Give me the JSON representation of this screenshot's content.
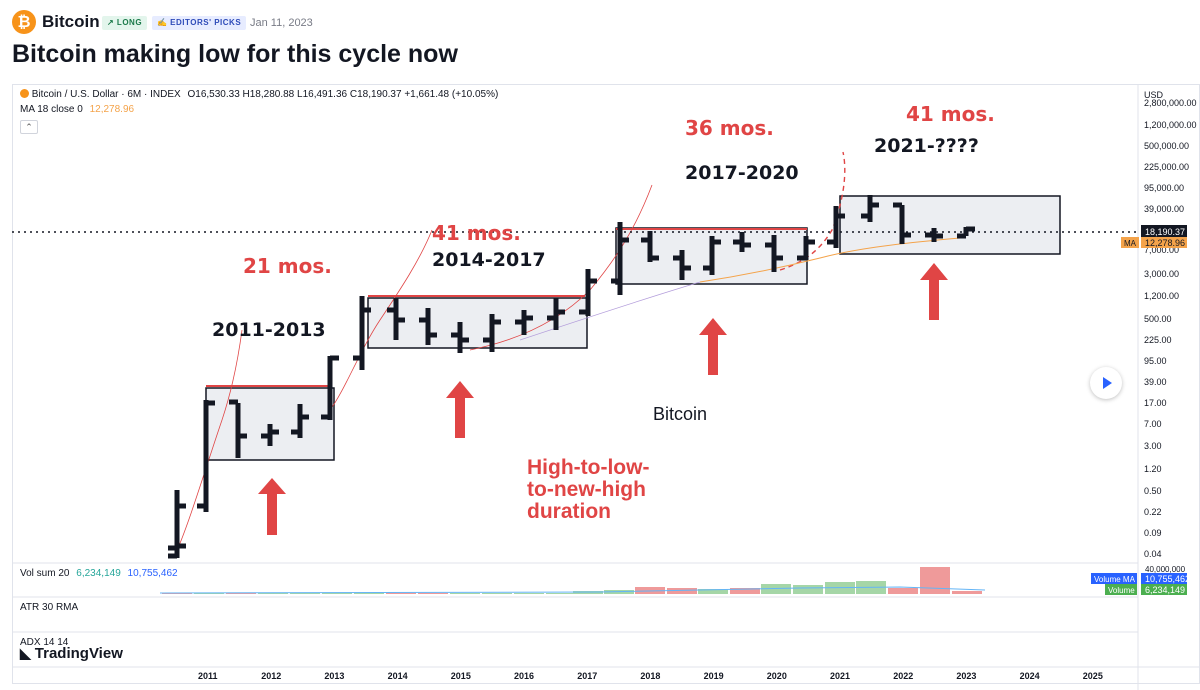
{
  "header": {
    "symbol": "Bitcoin",
    "badge_long": "↗ LONG",
    "badge_editors": "✍ EDITORS' PICKS",
    "date": "Jan 11, 2023",
    "title": "Bitcoin making low for this cycle now"
  },
  "legend": {
    "symbol": "Bitcoin / U.S. Dollar · 6M · INDEX",
    "ohlc": "O16,530.33  H18,280.88  L16,491.36  C18,190.37  +1,661.48 (+10.05%)",
    "ma_label": "MA 18 close 0",
    "ma_value": "12,278.96",
    "vol_label": "Vol sum 20",
    "vol_value1": "6,234,149",
    "vol_value2": "10,755,462",
    "atr_label": "ATR 30 RMA",
    "adx_label": "ADX 14 14"
  },
  "price_axis": {
    "currency": "USD",
    "labels": [
      "2,800,000.00",
      "1,200,000.00",
      "500,000.00",
      "225,000.00",
      "95,000.00",
      "39,000.00",
      "7,000.00",
      "3,000.00",
      "1,200.00",
      "500.00",
      "225.00",
      "95.00",
      "39.00",
      "17.00",
      "7.00",
      "3.00",
      "1.20",
      "0.50",
      "0.22",
      "0.09",
      "0.04"
    ],
    "last_price_tag": "18,190.37",
    "ma_tag_label": "MA",
    "ma_tag_value": "12,278.96",
    "vol_axis_label": "40,000,000",
    "volume_ma_label": "Volume MA",
    "volume_ma_value": "10,755,462",
    "volume_label": "Volume",
    "volume_value": "6,234,149"
  },
  "time_axis": [
    "2011",
    "2012",
    "2013",
    "2014",
    "2015",
    "2016",
    "2017",
    "2018",
    "2019",
    "2020",
    "2021",
    "2022",
    "2023",
    "2024",
    "2025"
  ],
  "annotations": {
    "cycle1": "2011-2013",
    "cycle2": "2014-2017",
    "cycle3": "2017-2020",
    "cycle4": "2021-????",
    "dur1": "21 mos.",
    "dur2": "41 mos.",
    "dur3": "36 mos.",
    "dur4": "41 mos.",
    "center_label": "Bitcoin",
    "note_line1": "High-to-low-",
    "note_line2": "to-new-high",
    "note_line3": "duration"
  },
  "footer": {
    "brand": "TradingView"
  },
  "chart_data": {
    "type": "bar",
    "series_name": "Bitcoin / U.S. Dollar",
    "timeframe": "6M",
    "log_scale": true,
    "last": {
      "open": 16530.33,
      "high": 18280.88,
      "low": 16491.36,
      "close": 18190.37,
      "change": 1661.48,
      "change_pct": 10.05
    },
    "ma18": 12278.96,
    "cycles": [
      {
        "label": "2011-2013",
        "duration": "21 mos."
      },
      {
        "label": "2014-2017",
        "duration": "41 mos."
      },
      {
        "label": "2017-2020",
        "duration": "36 mos."
      },
      {
        "label": "2021-????",
        "duration": "41 mos."
      }
    ]
  },
  "colors": {
    "bars": "#131722",
    "annotation_red": "#e04545",
    "ma": "#f4a34a",
    "volume_up": "#26a69a",
    "volume_down": "#ef5350",
    "accent": "#2962ff"
  }
}
